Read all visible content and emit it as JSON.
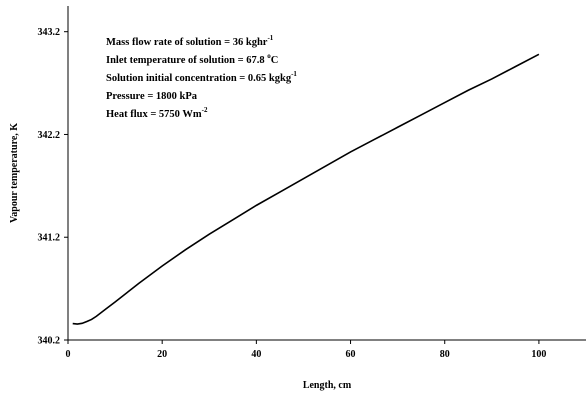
{
  "chart_data": {
    "type": "line",
    "title": "",
    "xlabel": "Length, cm",
    "ylabel": "Vapour temperature, K",
    "xlim": [
      0,
      110
    ],
    "ylim": [
      340.2,
      343.45
    ],
    "xticks": [
      0,
      20,
      40,
      60,
      80,
      100
    ],
    "xtick_labels": [
      "0",
      "20",
      "40",
      "60",
      "80",
      "100"
    ],
    "yticks": [
      340.2,
      341.2,
      342.2,
      343.2
    ],
    "ytick_labels": [
      "340.2",
      "341.2",
      "342.2",
      "343.2"
    ],
    "grid": false,
    "annotations": [
      {
        "text": "Mass flow rate of solution = 36 kghr",
        "sup": "-1"
      },
      {
        "text": "Inlet temperature of solution = 67.8 ",
        "sup": "o",
        "suffix": "C"
      },
      {
        "text": "Solution initial concentration = 0.65 kgkg",
        "sup": "-1"
      },
      {
        "text": "Pressure = 1800 kPa",
        "sup": ""
      },
      {
        "text": "Heat flux = 5750 Wm",
        "sup": "-2"
      }
    ],
    "series": [
      {
        "x": [
          1,
          2,
          3,
          4,
          5,
          6,
          8,
          10,
          15,
          20,
          25,
          30,
          35,
          40,
          45,
          50,
          55,
          60,
          65,
          70,
          75,
          80,
          85,
          90,
          95,
          100
        ],
        "y": [
          340.36,
          340.355,
          340.362,
          340.38,
          340.4,
          340.43,
          340.5,
          340.57,
          340.75,
          340.92,
          341.08,
          341.23,
          341.37,
          341.51,
          341.64,
          341.77,
          341.9,
          342.03,
          342.15,
          342.27,
          342.39,
          342.51,
          342.63,
          342.74,
          342.86,
          342.98
        ]
      }
    ]
  }
}
